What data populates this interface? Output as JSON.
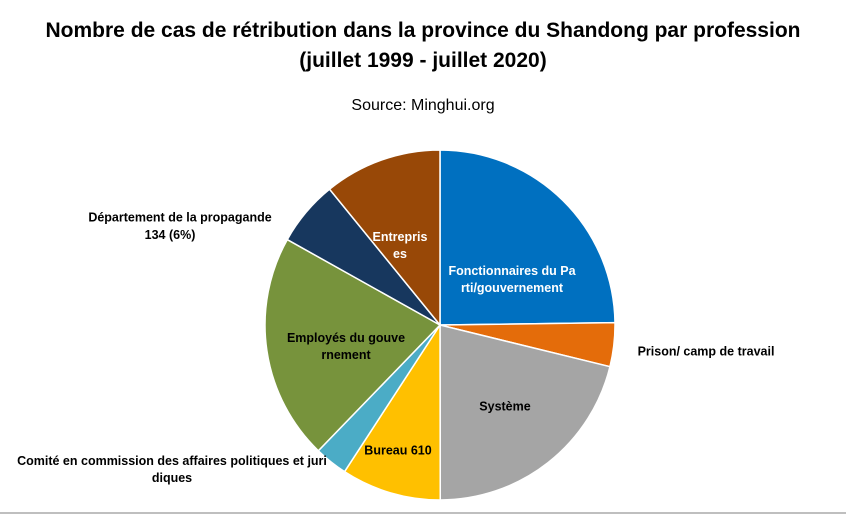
{
  "chart_data": {
    "type": "pie",
    "title": "Nombre de cas de rétribution dans la province du Shandong par profession (juillet 1999 - juillet 2020)",
    "subtitle": "Source: Minghui.org",
    "categories": [
      "Fonctionnaires du Parti/gouvernement",
      "Prison/ camp de travail",
      "Système",
      "Bureau 610",
      "Comité en commission des affaires politiques et juridiques",
      "Employés du gouvernement",
      "Département de la propagande",
      "Entreprises"
    ],
    "values": [
      552,
      90,
      471,
      205,
      68,
      465,
      134,
      242
    ],
    "value_labels": [
      null,
      null,
      null,
      null,
      null,
      null,
      "134 (6%)",
      null
    ],
    "colors": [
      "#0070c0",
      "#e46c0a",
      "#a5a5a5",
      "#ffc000",
      "#4bacc6",
      "#77933c",
      "#17375e",
      "#984807"
    ]
  }
}
